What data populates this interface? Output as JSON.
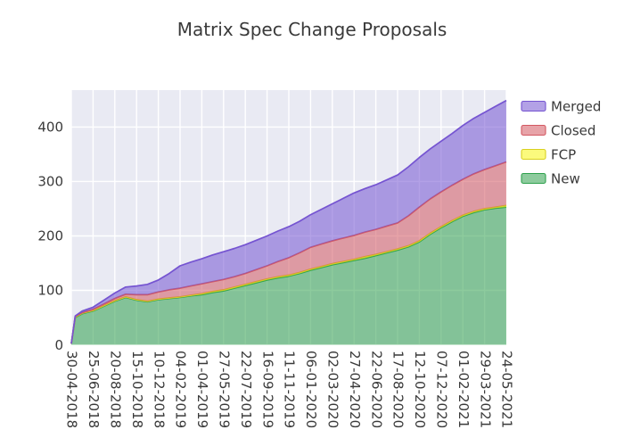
{
  "title": "Matrix Spec Change Proposals",
  "colors": {
    "figure_bg": "#ffffff",
    "plot_bg": "#e9eaf3",
    "grid": "#ffffff",
    "tick_label": "#3a3a3a",
    "title": "#3a3a3a"
  },
  "chart_data": {
    "type": "area",
    "stacked": true,
    "title": "Matrix Spec Change Proposals",
    "grid": true,
    "legend_position": "outside-right-top",
    "ylim": [
      0,
      468
    ],
    "y_ticks": [
      0,
      100,
      200,
      300,
      400
    ],
    "x_tick_labels": [
      "30-04-2018",
      "25-06-2018",
      "20-08-2018",
      "15-10-2018",
      "10-12-2018",
      "04-02-2019",
      "01-04-2019",
      "27-05-2019",
      "22-07-2019",
      "16-09-2019",
      "11-11-2019",
      "06-01-2020",
      "02-03-2020",
      "27-04-2020",
      "22-06-2020",
      "17-08-2020",
      "12-10-2020",
      "07-12-2020",
      "01-02-2021",
      "29-03-2021",
      "24-05-2021"
    ],
    "x_tick_days": [
      0,
      56,
      112,
      168,
      224,
      280,
      336,
      392,
      448,
      504,
      560,
      616,
      672,
      728,
      784,
      840,
      896,
      952,
      1008,
      1064,
      1120
    ],
    "x_days": [
      0,
      10,
      28,
      56,
      84,
      112,
      140,
      168,
      196,
      224,
      252,
      280,
      308,
      336,
      364,
      392,
      420,
      448,
      476,
      504,
      532,
      560,
      588,
      616,
      644,
      672,
      700,
      728,
      756,
      784,
      812,
      840,
      868,
      896,
      924,
      952,
      980,
      1008,
      1036,
      1064,
      1092,
      1120
    ],
    "series": [
      {
        "name": "New",
        "fill": "rgba(47,161,77,0.55)",
        "edge": "#2fa14d",
        "values": [
          2,
          50,
          57,
          62,
          71,
          80,
          87,
          82,
          79,
          83,
          85,
          87,
          90,
          92,
          96,
          99,
          104,
          109,
          114,
          119,
          123,
          126,
          131,
          137,
          142,
          147,
          151,
          155,
          159,
          164,
          169,
          174,
          180,
          189,
          203,
          215,
          226,
          236,
          243,
          248,
          251,
          253
        ]
      },
      {
        "name": "FCP",
        "fill": "rgba(248,246,19,0.55)",
        "edge": "#d9d020",
        "values": [
          0,
          1,
          1,
          1,
          1,
          1,
          1,
          1,
          1,
          1,
          1,
          1,
          1,
          2,
          2,
          2,
          2,
          2,
          2,
          2,
          2,
          2,
          2,
          2,
          2,
          2,
          2,
          2,
          3,
          2,
          2,
          2,
          2,
          2,
          2,
          2,
          2,
          2,
          2,
          2,
          2,
          3
        ]
      },
      {
        "name": "Closed",
        "fill": "rgba(211,88,97,0.55)",
        "edge": "#d35861",
        "values": [
          0,
          1,
          1,
          2,
          3,
          4,
          5,
          9,
          12,
          13,
          15,
          16,
          17,
          18,
          18,
          19,
          19,
          20,
          22,
          24,
          28,
          32,
          36,
          40,
          41,
          42,
          43,
          44,
          45,
          46,
          47,
          48,
          55,
          62,
          63,
          64,
          65,
          66,
          69,
          72,
          76,
          80
        ]
      },
      {
        "name": "Merged",
        "fill": "rgba(117,84,209,0.55)",
        "edge": "#7554d1",
        "values": [
          0,
          1,
          3,
          4,
          7,
          10,
          13,
          16,
          19,
          22,
          30,
          41,
          44,
          46,
          49,
          51,
          52,
          53,
          54,
          55,
          56,
          57,
          58,
          60,
          64,
          68,
          73,
          78,
          80,
          82,
          85,
          88,
          90,
          91,
          92,
          93,
          95,
          99,
          102,
          105,
          109,
          113
        ]
      }
    ],
    "legend": [
      {
        "label": "Merged",
        "series": "Merged"
      },
      {
        "label": "Closed",
        "series": "Closed"
      },
      {
        "label": "FCP",
        "series": "FCP"
      },
      {
        "label": "New",
        "series": "New"
      }
    ]
  }
}
